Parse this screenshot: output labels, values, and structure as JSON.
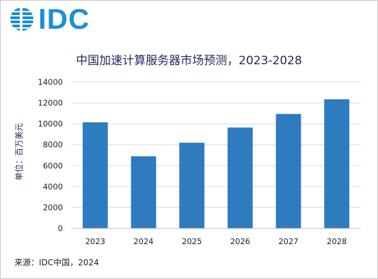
{
  "logo": {
    "text": "IDC",
    "icon": "globe-icon",
    "color": "#1a8ed8"
  },
  "chart_data": {
    "type": "bar",
    "title": "中国加速计算服务器市场预测，2023-2028",
    "ylabel": "单位：百万美元",
    "xlabel": "",
    "categories": [
      "2023",
      "2024",
      "2025",
      "2026",
      "2027",
      "2028"
    ],
    "values": [
      10150,
      6900,
      8200,
      9650,
      10950,
      12350
    ],
    "ylim": [
      0,
      14000
    ],
    "yticks": [
      0,
      2000,
      4000,
      6000,
      8000,
      10000,
      12000,
      14000
    ],
    "bar_color": "#2f7bbf",
    "grid": true,
    "legend": "none"
  },
  "source": "来源：IDC中国，2024"
}
